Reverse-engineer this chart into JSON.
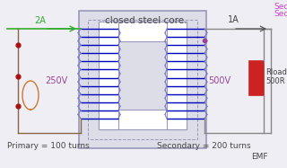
{
  "bg_color": "#eeeef4",
  "title": "closed steel core.",
  "primary_label": "Primary = 100 turns",
  "secondary_label": "Secondary = 200 turns",
  "current_primary": "2A",
  "current_secondary": "1A",
  "voltage_primary": "250V",
  "voltage_secondary": "500V",
  "rload_label1": "Rload",
  "rload_label2": "500R",
  "emf_label": "EMF",
  "sec_label1": "Sec",
  "sec_label2": "Sec",
  "wire_color": "#0000bb",
  "wire_color2": "#7777cc",
  "core_edge": "#9999bb",
  "core_fill": "#dddde8",
  "core_inner_fill": "#ffffff",
  "rload_color": "#cc2222",
  "green_color": "#33aa33",
  "volt_color": "#994499",
  "text_color": "#444444",
  "dot_color": "#aa1111",
  "sec_text_color": "#cc44cc",
  "left_wire_color": "#886644",
  "sine_color": "#cc7733",
  "arrow_color": "#555555",
  "secondary_wire_color": "#888888"
}
